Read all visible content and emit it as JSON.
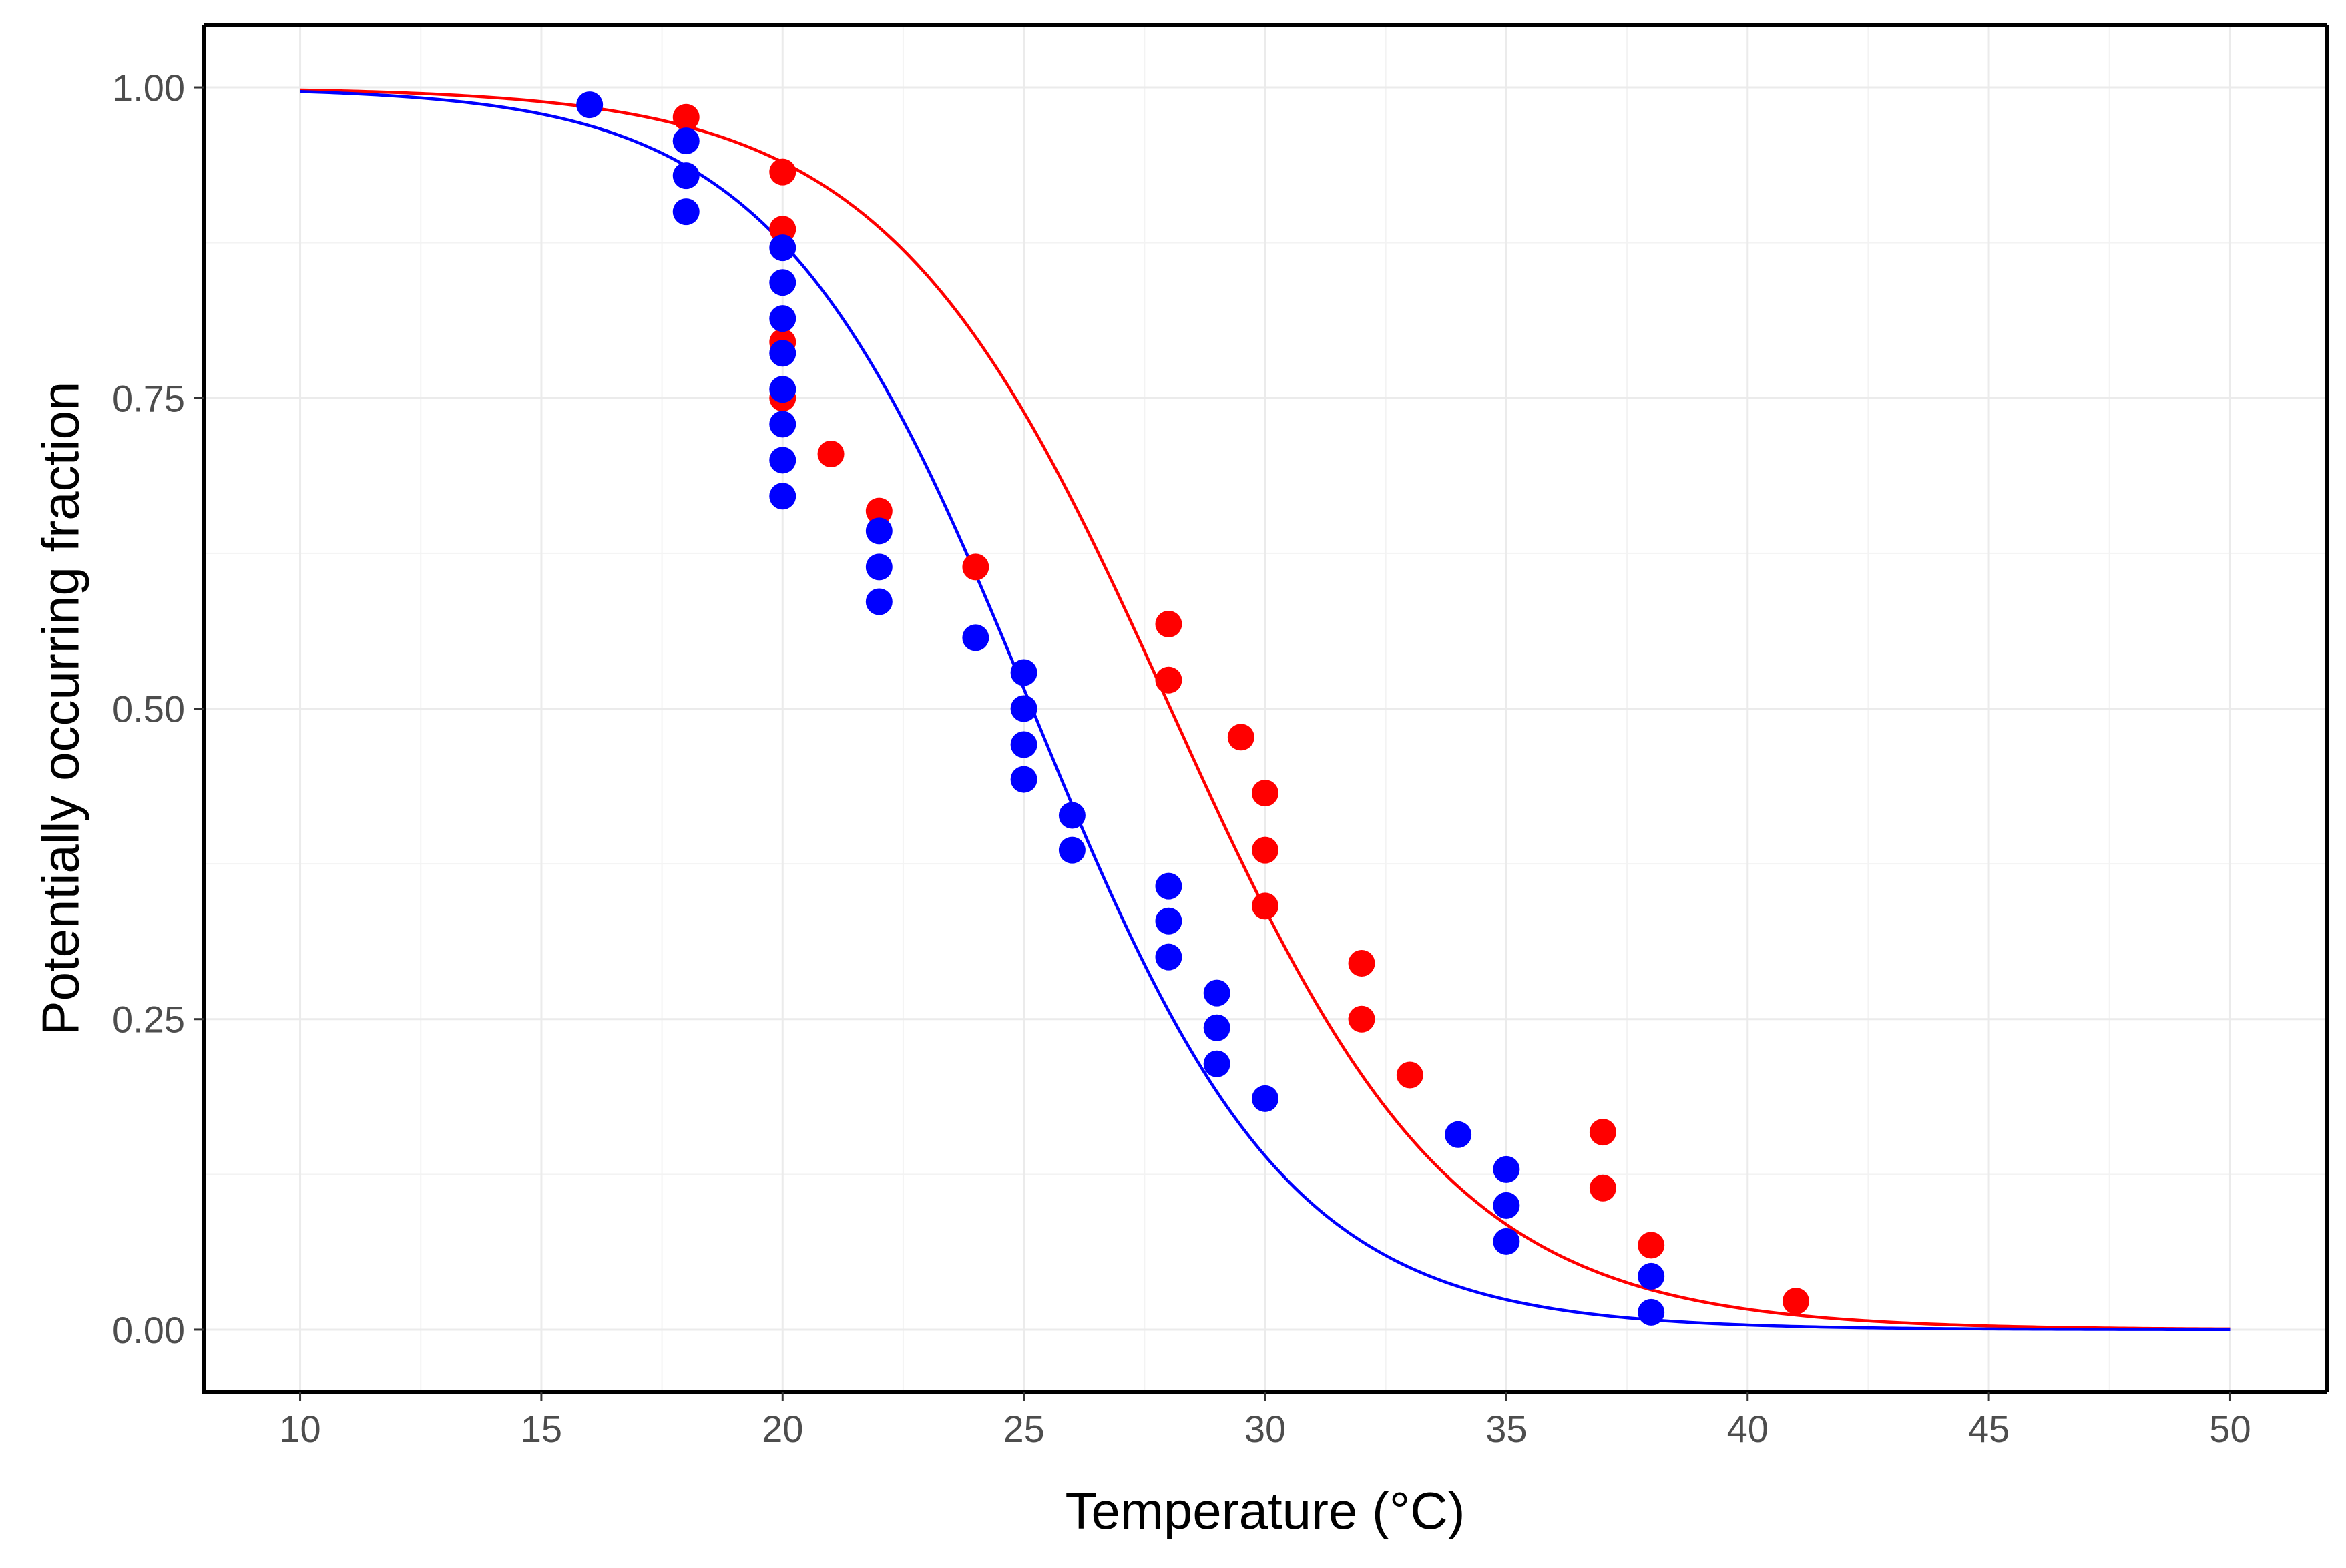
{
  "chart_data": {
    "type": "scatter",
    "xlabel": "Temperature (°C)",
    "ylabel": "Potentially occurring fraction",
    "xlim": [
      8,
      52
    ],
    "ylim": [
      -0.05,
      1.05
    ],
    "x_ticks": [
      10,
      15,
      20,
      25,
      30,
      35,
      40,
      45,
      50
    ],
    "x_tick_labels": [
      "10",
      "15",
      "20",
      "25",
      "30",
      "35",
      "40",
      "45",
      "50"
    ],
    "y_ticks": [
      0,
      0.25,
      0.5,
      0.75,
      1.0
    ],
    "y_tick_labels": [
      "0.00",
      "0.25",
      "0.50",
      "0.75",
      "1.00"
    ],
    "grid": true,
    "series": [
      {
        "name": "red",
        "color": "#ff0000",
        "points": [
          [
            18,
            0.976
          ],
          [
            20,
            0.932
          ],
          [
            20,
            0.886
          ],
          [
            20,
            0.795
          ],
          [
            20,
            0.75
          ],
          [
            21,
            0.705
          ],
          [
            22,
            0.659
          ],
          [
            24,
            0.614
          ],
          [
            28,
            0.568
          ],
          [
            28,
            0.523
          ],
          [
            29.5,
            0.477
          ],
          [
            30,
            0.432
          ],
          [
            30,
            0.386
          ],
          [
            30,
            0.341
          ],
          [
            32,
            0.295
          ],
          [
            32,
            0.25
          ],
          [
            33,
            0.205
          ],
          [
            37,
            0.159
          ],
          [
            37,
            0.114
          ],
          [
            38,
            0.068
          ],
          [
            41,
            0.023
          ]
        ],
        "fit": {
          "model": "logistic",
          "midpoint": 28.04,
          "scale": 2.925,
          "x_range": [
            10,
            50
          ]
        }
      },
      {
        "name": "blue",
        "color": "#0000ff",
        "points": [
          [
            16,
            0.986
          ],
          [
            18,
            0.957
          ],
          [
            18,
            0.929
          ],
          [
            18,
            0.9
          ],
          [
            20,
            0.871
          ],
          [
            20,
            0.843
          ],
          [
            20,
            0.814
          ],
          [
            20,
            0.786
          ],
          [
            20,
            0.757
          ],
          [
            20,
            0.729
          ],
          [
            20,
            0.7
          ],
          [
            20,
            0.671
          ],
          [
            22,
            0.643
          ],
          [
            22,
            0.614
          ],
          [
            22,
            0.586
          ],
          [
            24,
            0.557
          ],
          [
            25,
            0.529
          ],
          [
            25,
            0.5
          ],
          [
            25,
            0.471
          ],
          [
            25,
            0.443
          ],
          [
            26,
            0.414
          ],
          [
            26,
            0.386
          ],
          [
            28,
            0.357
          ],
          [
            28,
            0.329
          ],
          [
            28,
            0.3
          ],
          [
            29,
            0.271
          ],
          [
            29,
            0.243
          ],
          [
            29,
            0.214
          ],
          [
            30,
            0.186
          ],
          [
            34,
            0.157
          ],
          [
            35,
            0.129
          ],
          [
            35,
            0.1
          ],
          [
            35,
            0.071
          ],
          [
            38,
            0.043
          ],
          [
            38,
            0.014
          ]
        ],
        "fit": {
          "model": "logistic",
          "midpoint": 25.17,
          "scale": 2.659,
          "x_range": [
            10,
            50
          ]
        }
      }
    ]
  }
}
